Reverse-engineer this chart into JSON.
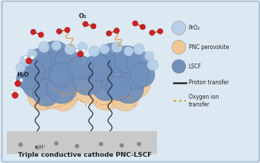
{
  "bg_color": "#dce8f2",
  "substrate_color": "#c9c9c9",
  "title_text": "Triple conductive cathode PNC-LSCF",
  "title_fontsize": 6.8,
  "legend_items": [
    {
      "label": "PrO₂",
      "color": "#b8d0e8",
      "type": "circle"
    },
    {
      "label": "PNC perovskite",
      "color": "#f0c898",
      "type": "circle"
    },
    {
      "label": "LSCF",
      "color": "#7090bc",
      "type": "circle"
    },
    {
      "label": "Proton transfer",
      "color": "#222222",
      "type": "line"
    },
    {
      "label": "Oxygen ion\ntransfer",
      "color": "#e09030",
      "type": "dotted"
    }
  ],
  "o2_molecule_color": "#cc2222",
  "o2_bond_color": "#cc2222",
  "h2o_o_color": "#cc2222",
  "h2o_h_color": "#ffffff"
}
